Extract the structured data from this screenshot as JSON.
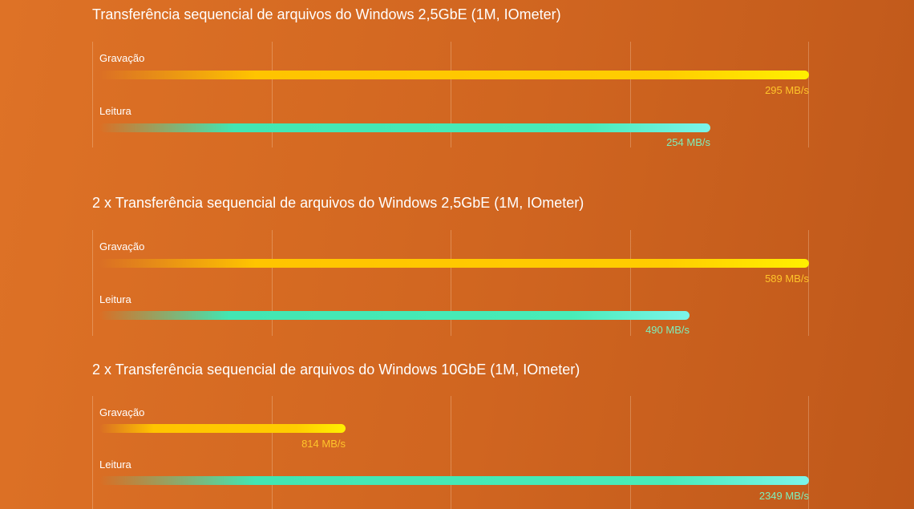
{
  "colors": {
    "write_bar": "#ffcc00",
    "read_bar": "#48ecb8",
    "write_value_text": "#ffc52a",
    "read_value_text": "#7ef0bc"
  },
  "chart_data": [
    {
      "type": "bar",
      "orientation": "horizontal",
      "title": "Transferência sequencial de arquivos do Windows 2,5GbE (1M, IOmeter)",
      "unit": "MB/s",
      "grid": true,
      "xlim": [
        0,
        295
      ],
      "bars": [
        {
          "label": "Gravação",
          "value": 295,
          "value_label": "295 MB/s",
          "kind": "write"
        },
        {
          "label": "Leitura",
          "value": 254,
          "value_label": "254 MB/s",
          "kind": "read"
        }
      ]
    },
    {
      "type": "bar",
      "orientation": "horizontal",
      "title": "2 x Transferência sequencial de arquivos do Windows 2,5GbE (1M, IOmeter)",
      "unit": "MB/s",
      "grid": true,
      "xlim": [
        0,
        589
      ],
      "bars": [
        {
          "label": "Gravação",
          "value": 589,
          "value_label": "589 MB/s",
          "kind": "write"
        },
        {
          "label": "Leitura",
          "value": 490,
          "value_label": "490 MB/s",
          "kind": "read"
        }
      ]
    },
    {
      "type": "bar",
      "orientation": "horizontal",
      "title": "2 x Transferência sequencial de arquivos do Windows 10GbE (1M, IOmeter)",
      "unit": "MB/s",
      "grid": true,
      "xlim": [
        0,
        2349
      ],
      "bars": [
        {
          "label": "Gravação",
          "value": 814,
          "value_label": "814 MB/s",
          "kind": "write"
        },
        {
          "label": "Leitura",
          "value": 2349,
          "value_label": "2349 MB/s",
          "kind": "read"
        }
      ]
    }
  ]
}
